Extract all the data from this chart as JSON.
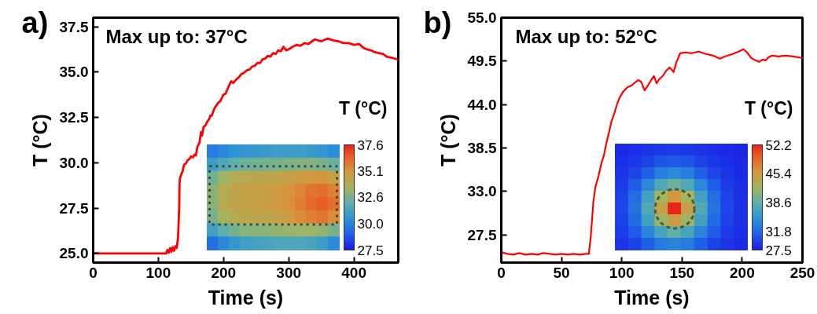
{
  "chart_data": [
    {
      "type": "line",
      "title": "a)",
      "xlabel": "Time (s)",
      "ylabel": "T (°C)",
      "annotations": [
        "Max up to: 37°C"
      ],
      "x": [
        0,
        20,
        40,
        60,
        80,
        100,
        112,
        114,
        116,
        118,
        120,
        122,
        124,
        126,
        128,
        130,
        131,
        132,
        132.5,
        133,
        135.4,
        137,
        139.4,
        142,
        145,
        147.5,
        150,
        153,
        155.5,
        157.5,
        160,
        163,
        165.5,
        167,
        169.5,
        172,
        175.5,
        178,
        179.6,
        182,
        186,
        191.6,
        195,
        199.6,
        203,
        207.7,
        211.7,
        215,
        219.7,
        223,
        227.7,
        231,
        235.8,
        240,
        243.8,
        248,
        251.8,
        256,
        259.8,
        264,
        267.8,
        272,
        275.9,
        280,
        283.9,
        288,
        291.9,
        296,
        300,
        306,
        312,
        318,
        324,
        330,
        340,
        350,
        360,
        368,
        376,
        384,
        392,
        400,
        408,
        414,
        420,
        426,
        432,
        438,
        444.5,
        450,
        456.5,
        462,
        466.5
      ],
      "series": [
        {
          "color": "#ff0000",
          "values": [
            25.0,
            25.0,
            25.0,
            25.0,
            25.0,
            25.0,
            25.0,
            25.2,
            25.05,
            25.3,
            25.1,
            25.35,
            25.15,
            25.4,
            25.3,
            25.8,
            26.6,
            27.6,
            28.9,
            29.1,
            29.4,
            29.5,
            29.9,
            29.95,
            30.15,
            30.2,
            30.35,
            30.3,
            30.45,
            30.4,
            30.9,
            31.1,
            31.7,
            31.5,
            32.0,
            32.05,
            32.3,
            32.4,
            32.6,
            32.6,
            33.0,
            33.3,
            33.4,
            33.75,
            33.8,
            34.2,
            34.5,
            34.4,
            34.6,
            34.7,
            34.9,
            34.95,
            35.1,
            35.15,
            35.3,
            35.35,
            35.5,
            35.5,
            35.7,
            35.75,
            35.9,
            35.85,
            36.05,
            36.0,
            36.2,
            36.15,
            36.4,
            36.2,
            36.25,
            36.4,
            36.5,
            36.45,
            36.6,
            36.55,
            36.8,
            36.7,
            36.85,
            36.75,
            36.7,
            36.6,
            36.6,
            36.5,
            36.55,
            36.35,
            36.25,
            36.2,
            36.1,
            36.05,
            36.0,
            35.85,
            35.8,
            35.75,
            35.7
          ]
        }
      ],
      "xlim": [
        0,
        468
      ],
      "ylim": [
        24.5,
        38.0
      ],
      "xticks": [
        0,
        100,
        200,
        300,
        400
      ],
      "yticks": [
        {
          "value": 25,
          "label": "25.0"
        },
        27.5,
        {
          "value": 30,
          "label": "30.0"
        },
        32.5,
        {
          "value": 35,
          "label": "35.0"
        },
        37.5
      ]
    },
    {
      "type": "heatmap",
      "clabel": "T (°C)",
      "categories": [
        null,
        null,
        null,
        null,
        null,
        null,
        null,
        null,
        null,
        null,
        null,
        null
      ],
      "y_categories": [
        null,
        null,
        null,
        null,
        null,
        null,
        null,
        null
      ],
      "cells": [
        [
          29.8,
          30.2,
          30.5,
          30.7,
          30.8,
          30.9,
          31.0,
          31.0,
          31.0,
          30.9,
          30.7,
          30.4
        ],
        [
          31.0,
          31.6,
          32.0,
          32.3,
          32.4,
          32.5,
          32.6,
          32.7,
          32.8,
          32.8,
          32.6,
          32.2
        ],
        [
          32.4,
          33.4,
          33.9,
          34.1,
          34.2,
          34.3,
          34.4,
          34.6,
          34.8,
          35.0,
          35.1,
          34.6
        ],
        [
          33.0,
          34.0,
          34.4,
          34.5,
          34.6,
          34.7,
          34.8,
          35.1,
          35.5,
          35.9,
          36.1,
          35.6
        ],
        [
          33.0,
          34.0,
          34.4,
          34.5,
          34.6,
          34.7,
          34.9,
          35.2,
          35.7,
          36.2,
          36.5,
          36.0
        ],
        [
          32.6,
          33.6,
          34.0,
          34.2,
          34.3,
          34.4,
          34.6,
          34.9,
          35.3,
          35.7,
          35.9,
          35.3
        ],
        [
          31.2,
          32.0,
          32.6,
          32.9,
          33.0,
          33.1,
          33.2,
          33.3,
          33.4,
          33.4,
          33.2,
          32.6
        ],
        [
          29.5,
          30.2,
          30.8,
          31.1,
          31.3,
          31.4,
          31.5,
          31.5,
          31.5,
          31.4,
          31.0,
          30.3
        ]
      ],
      "clim": [
        27.5,
        37.6
      ],
      "cticks": [
        27.5,
        {
          "value": 30,
          "label": "30.0"
        },
        32.6,
        35.1,
        37.6
      ]
    },
    {
      "type": "line",
      "title": "b)",
      "xlabel": "Time (s)",
      "ylabel": "T (°C)",
      "annotations": [
        "Max up to: 52°C"
      ],
      "x": [
        0,
        5,
        10,
        15,
        20,
        25,
        30,
        35,
        40,
        45,
        50,
        55,
        60,
        65,
        70,
        72.7,
        74.3,
        76.4,
        78,
        80.8,
        83,
        85.2,
        87.5,
        89.6,
        91.5,
        93.9,
        96,
        98.3,
        101,
        104.9,
        108,
        111,
        113.6,
        116,
        119,
        122,
        124,
        126.7,
        128.9,
        131,
        134,
        137,
        139.8,
        141.5,
        143,
        145,
        148.5,
        152.9,
        158,
        163.8,
        170,
        176,
        181.3,
        186,
        192.2,
        197,
        201,
        204,
        207.5,
        211,
        214,
        217,
        219.5,
        222,
        225,
        230,
        236,
        242,
        246,
        250
      ],
      "series": [
        {
          "color": "#ff0000",
          "values": [
            25.3,
            25.1,
            25.0,
            25.2,
            25.0,
            25.1,
            25.0,
            25.2,
            25.1,
            25.0,
            25.1,
            25.0,
            25.1,
            25.0,
            25.1,
            25.1,
            27.3,
            31.6,
            33.5,
            35.0,
            36.5,
            37.6,
            39.3,
            40.6,
            41.9,
            42.9,
            44.0,
            44.9,
            45.6,
            46.2,
            46.4,
            46.8,
            47.1,
            46.9,
            45.8,
            46.5,
            47.0,
            47.6,
            46.7,
            47.2,
            47.6,
            48.3,
            48.7,
            48.4,
            48.1,
            49.2,
            50.5,
            50.6,
            50.5,
            50.7,
            50.4,
            50.2,
            49.8,
            50.1,
            50.4,
            50.7,
            51.0,
            50.6,
            49.9,
            49.6,
            49.4,
            49.7,
            49.6,
            50.0,
            50.2,
            50.1,
            50.2,
            50.1,
            50.0,
            49.9
          ]
        }
      ],
      "xlim": [
        0,
        250
      ],
      "ylim": [
        24.0,
        55.0
      ],
      "xticks": [
        0,
        50,
        100,
        150,
        200,
        250
      ],
      "yticks": [
        27.5,
        {
          "value": 33,
          "label": "33.0"
        },
        38.5,
        {
          "value": 44,
          "label": "44.0"
        },
        49.5,
        {
          "value": 55,
          "label": "55.0"
        }
      ]
    },
    {
      "type": "heatmap",
      "clabel": "T (°C)",
      "categories": [
        null,
        null,
        null,
        null,
        null,
        null,
        null,
        null,
        null,
        null
      ],
      "y_categories": [
        null,
        null,
        null,
        null,
        null,
        null,
        null,
        null,
        null
      ],
      "cells": [
        [
          28.3,
          28.6,
          28.9,
          29.2,
          29.3,
          29.2,
          28.9,
          28.6,
          28.3,
          28.1
        ],
        [
          28.6,
          29.1,
          29.8,
          30.6,
          30.9,
          30.6,
          29.8,
          29.1,
          28.6,
          28.3
        ],
        [
          29.0,
          29.9,
          31.4,
          33.4,
          34.2,
          33.4,
          31.4,
          29.9,
          29.0,
          28.4
        ],
        [
          29.3,
          31.1,
          34.1,
          37.5,
          39.3,
          37.5,
          34.1,
          31.1,
          29.3,
          28.6
        ],
        [
          29.7,
          32.2,
          36.6,
          42.3,
          45.9,
          42.3,
          36.6,
          32.2,
          29.7,
          28.7
        ],
        [
          29.9,
          32.7,
          37.6,
          44.6,
          52.0,
          44.6,
          37.6,
          32.7,
          29.9,
          28.8
        ],
        [
          29.6,
          32.1,
          36.4,
          41.8,
          45.1,
          41.8,
          36.4,
          32.1,
          29.6,
          28.7
        ],
        [
          29.3,
          31.0,
          33.8,
          37.0,
          38.7,
          37.0,
          33.8,
          31.0,
          29.3,
          28.6
        ],
        [
          28.9,
          29.8,
          31.3,
          33.1,
          33.8,
          33.1,
          31.3,
          29.8,
          28.9,
          28.4
        ]
      ],
      "clim": [
        27.5,
        52.2
      ],
      "cticks": [
        27.5,
        31.8,
        38.6,
        45.4,
        52.2
      ]
    }
  ]
}
